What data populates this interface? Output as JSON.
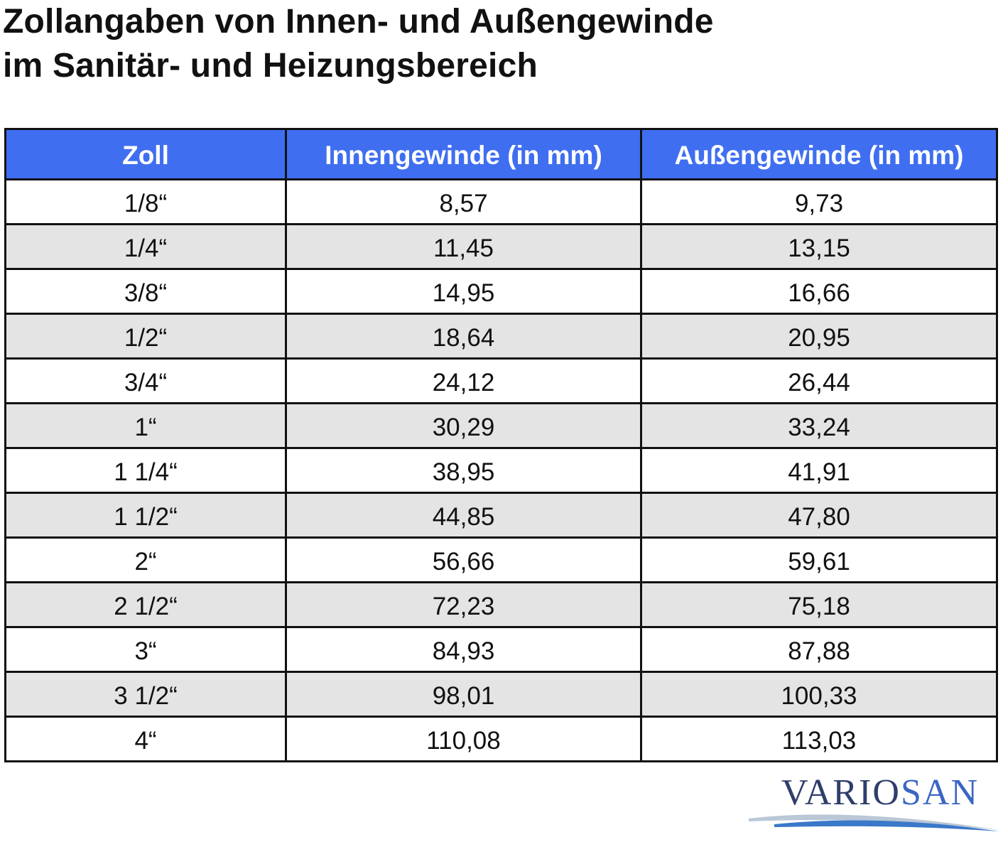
{
  "title": {
    "line1": "Zollangaben von Innen- und Außengewinde",
    "line2": "im Sanitär- und Heizungsbereich"
  },
  "table": {
    "headers": [
      "Zoll",
      "Innengewinde (in mm)",
      "Außengewinde (in mm)"
    ],
    "rows": [
      [
        "1/8“",
        "8,57",
        "9,73"
      ],
      [
        "1/4“",
        "11,45",
        "13,15"
      ],
      [
        "3/8“",
        "14,95",
        "16,66"
      ],
      [
        "1/2“",
        "18,64",
        "20,95"
      ],
      [
        "3/4“",
        "24,12",
        "26,44"
      ],
      [
        "1“",
        "30,29",
        "33,24"
      ],
      [
        "1 1/4“",
        "38,95",
        "41,91"
      ],
      [
        "1 1/2“",
        "44,85",
        "47,80"
      ],
      [
        "2“",
        "56,66",
        "59,61"
      ],
      [
        "2 1/2“",
        "72,23",
        "75,18"
      ],
      [
        "3“",
        "84,93",
        "87,88"
      ],
      [
        "3 1/2“",
        "98,01",
        "100,33"
      ],
      [
        "4“",
        "110,08",
        "113,03"
      ]
    ]
  },
  "brand": {
    "part_a": "VARIO",
    "part_b": "SAN"
  },
  "colors": {
    "header_bg": "#3f6ef0",
    "header_text": "#ffffff",
    "stripe_bg": "#e4e4e4",
    "border": "#111111",
    "brand_dark": "#2f3e6b",
    "brand_blue": "#3a66c4"
  }
}
